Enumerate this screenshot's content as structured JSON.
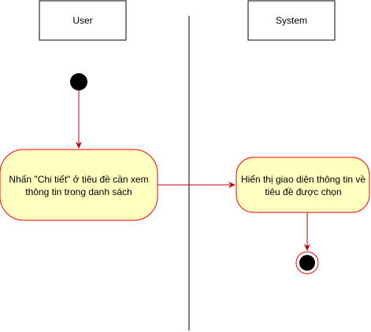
{
  "lanes": {
    "user": "User",
    "system": "System"
  },
  "actions": {
    "user_action": {
      "line1": "Nhấn \"Chi tiết\" ở tiêu đề cần xem",
      "line2": "thông tin trong danh sách"
    },
    "system_action": {
      "line1": "Hiển thị giao diện thông tin về",
      "line2": "tiêu đề được chọn"
    }
  },
  "colors": {
    "action_fill": "#ffffc0",
    "action_stroke": "#ff0000",
    "arrow": "#c00000",
    "node": "#000000",
    "lane_border": "#000000"
  }
}
